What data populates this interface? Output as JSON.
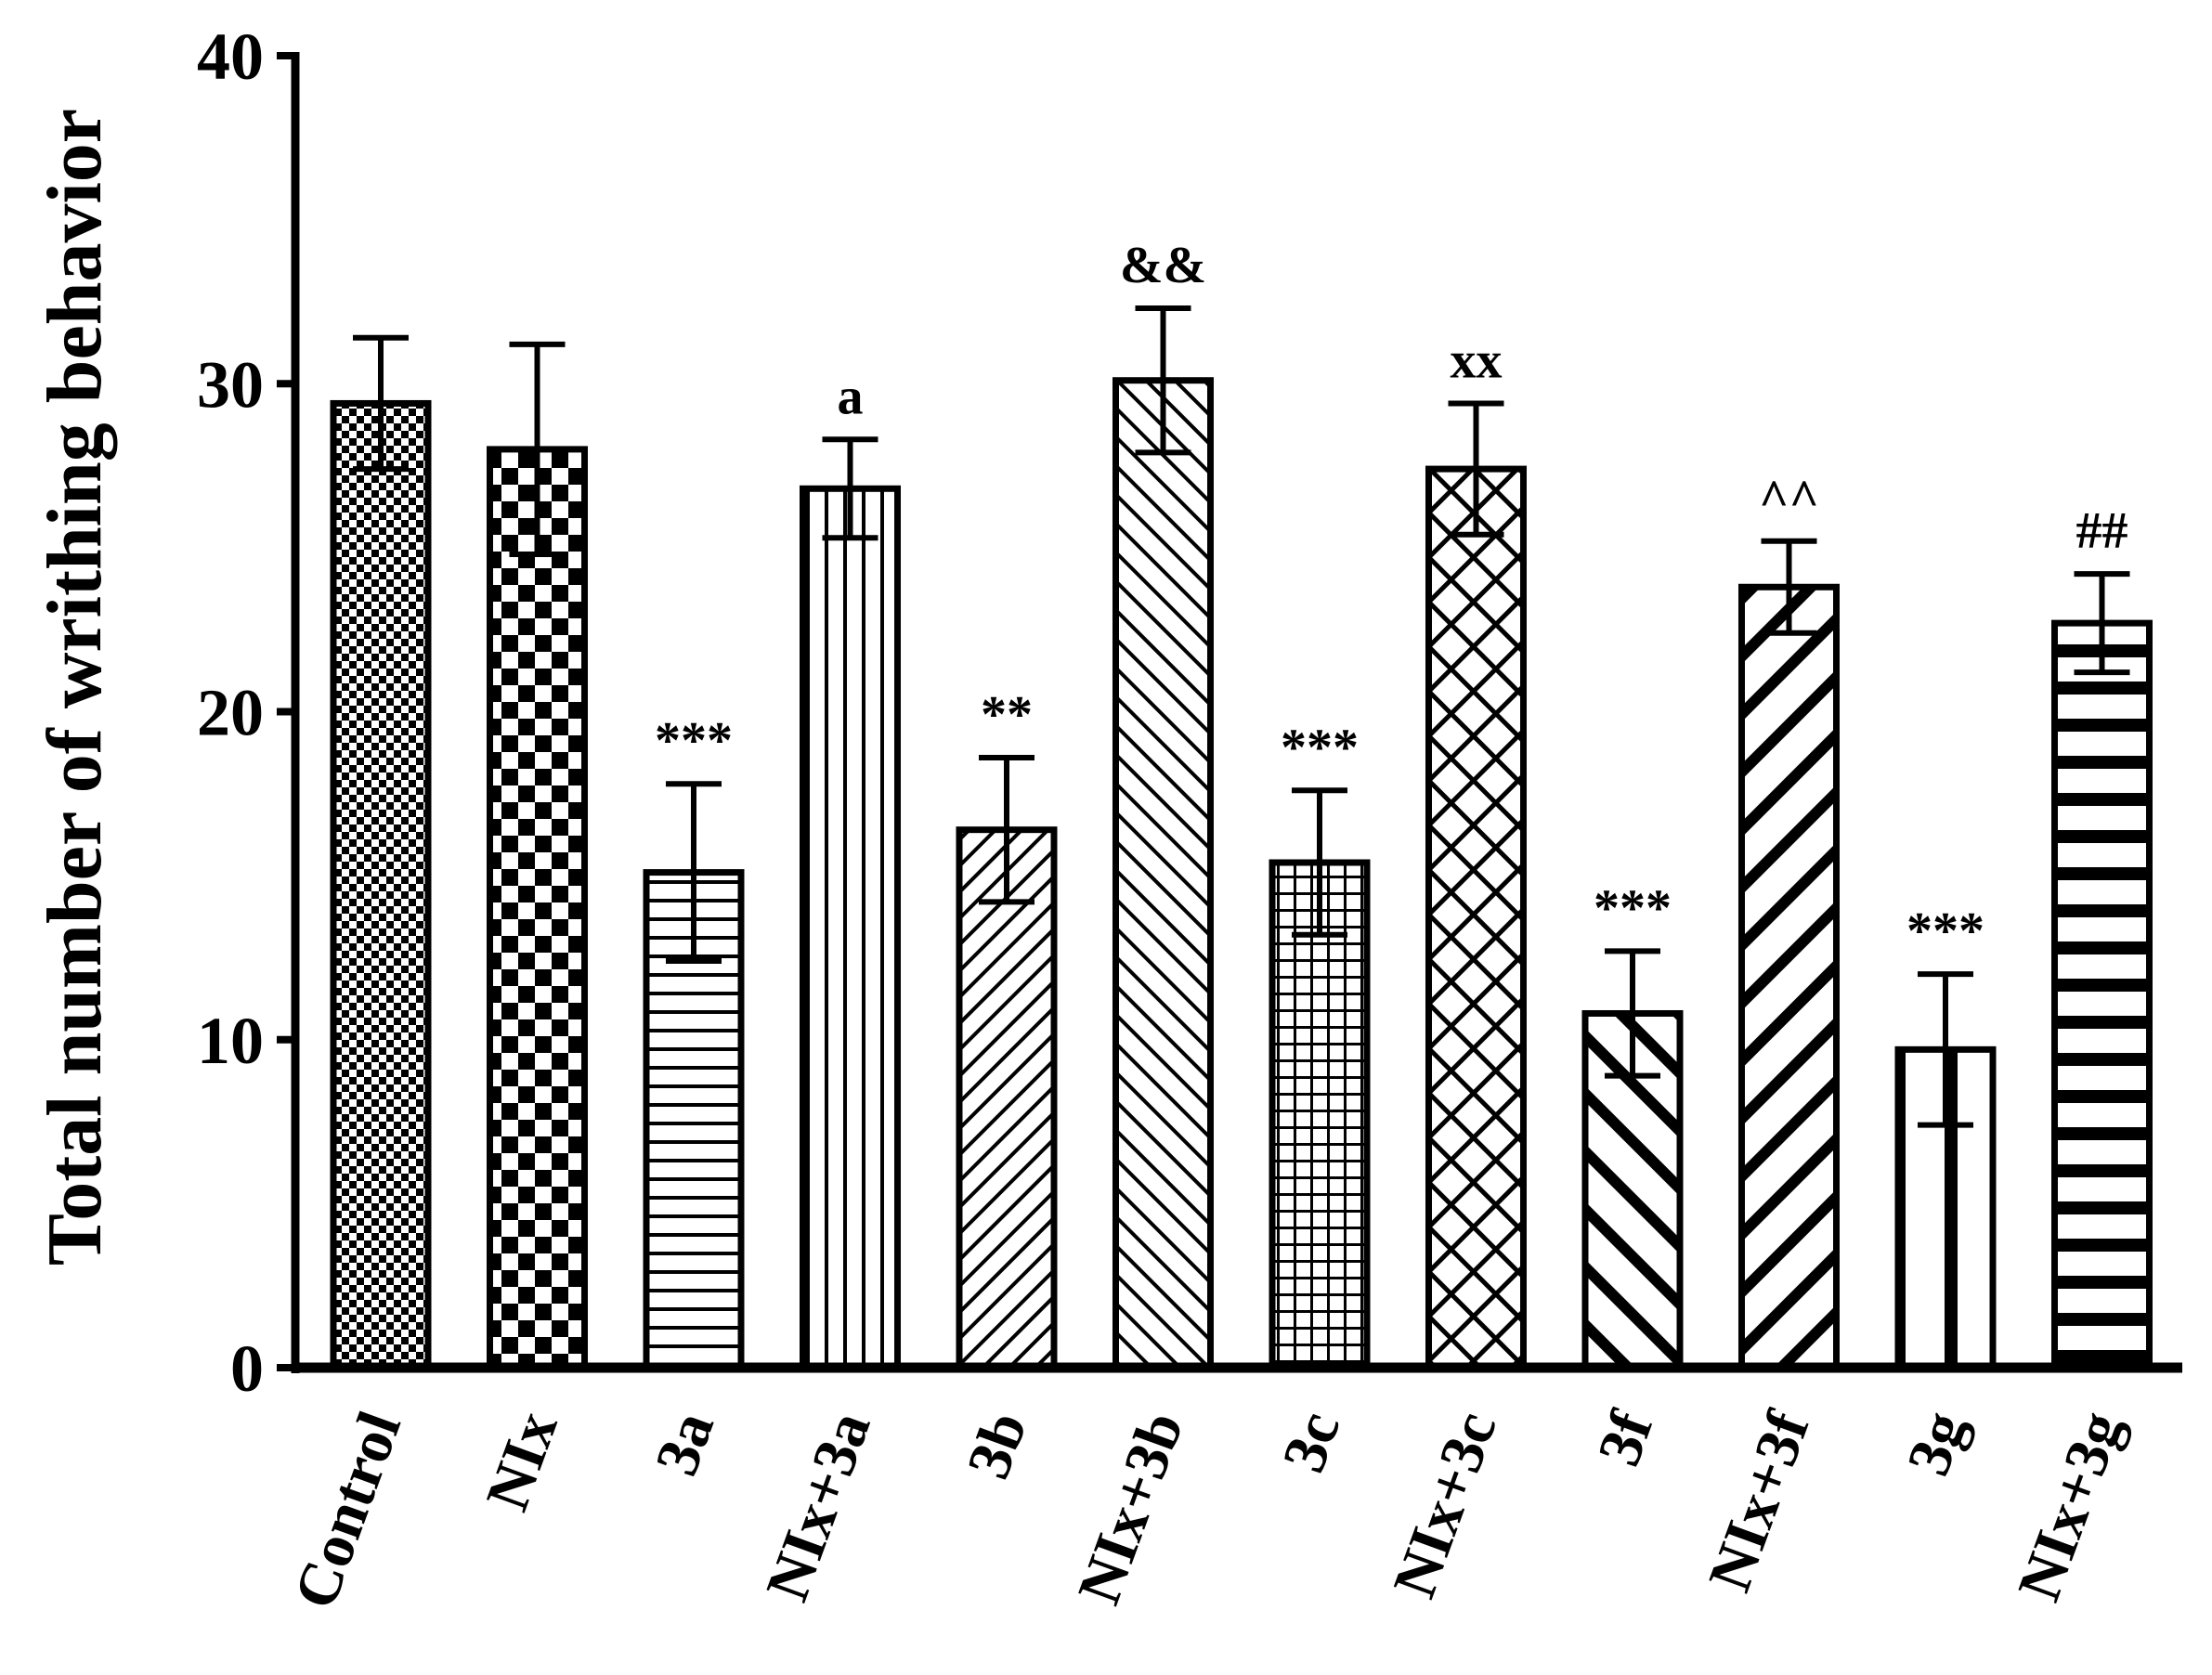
{
  "chart_data": {
    "type": "bar",
    "title": "",
    "xlabel": "",
    "ylabel": "Total number of writhing behavior",
    "ylim": [
      0,
      40
    ],
    "yticks": [
      0,
      10,
      20,
      30,
      40
    ],
    "ytick_labels": [
      "0",
      "10",
      "20",
      "30",
      "40"
    ],
    "grid": false,
    "legend": "none",
    "categories": [
      "Control",
      "NIx",
      "3a",
      "NIx+3a",
      "3b",
      "NIx+3b",
      "3c",
      "NIx+3c",
      "3f",
      "NIx+3f",
      "3g",
      "NIx+3g"
    ],
    "values": [
      29.4,
      28.0,
      15.1,
      26.8,
      16.4,
      30.1,
      15.4,
      27.4,
      10.8,
      23.8,
      9.7,
      22.7
    ],
    "errors": [
      2.0,
      3.2,
      2.7,
      1.5,
      2.2,
      2.2,
      2.2,
      2.0,
      1.9,
      1.4,
      2.3,
      1.5
    ],
    "annotations": [
      "",
      "",
      "***",
      "a",
      "**",
      "&&",
      "***",
      "xx",
      "***",
      "^^",
      "***",
      "##"
    ],
    "patterns": [
      "small-checker",
      "large-checker",
      "horizontal-thin",
      "vertical-thin",
      "diagonal-up",
      "diagonal-down",
      "grid",
      "diamond-lattice",
      "diagonal-down-thick",
      "diagonal-up-thick",
      "vertical-thick",
      "horizontal-thick"
    ],
    "colors": {
      "bar_stroke": "#000000",
      "bar_fill": "#ffffff",
      "pattern": "#000000",
      "axis": "#000000"
    }
  }
}
